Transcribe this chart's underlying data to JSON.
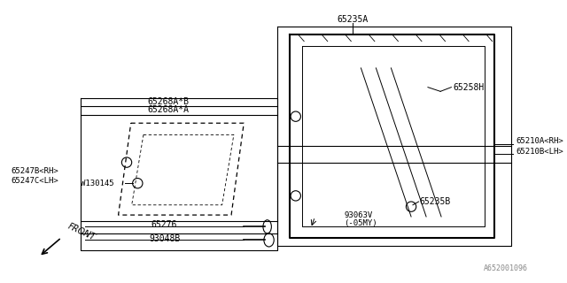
{
  "bg_color": "#ffffff",
  "line_color": "#000000",
  "light_line": "#aaaaaa",
  "diagram_id": "A652001096",
  "labels": {
    "65235A": "65235A",
    "65258H": "65258H",
    "65210A": "65210A<RH>",
    "65210B": "65210B<LH>",
    "65268AB": "65268A*B",
    "65268AA": "65268A*A",
    "W130145": "W130145",
    "65247B": "65247B<RH>",
    "65247C": "65247C<LH>",
    "65235B": "65235B",
    "93063V": "93063V",
    "93063V2": "(-05MY)",
    "65276": "65276",
    "93048B": "93048B",
    "FRONT": "FRONT",
    "diagram_id": "A652001096"
  }
}
